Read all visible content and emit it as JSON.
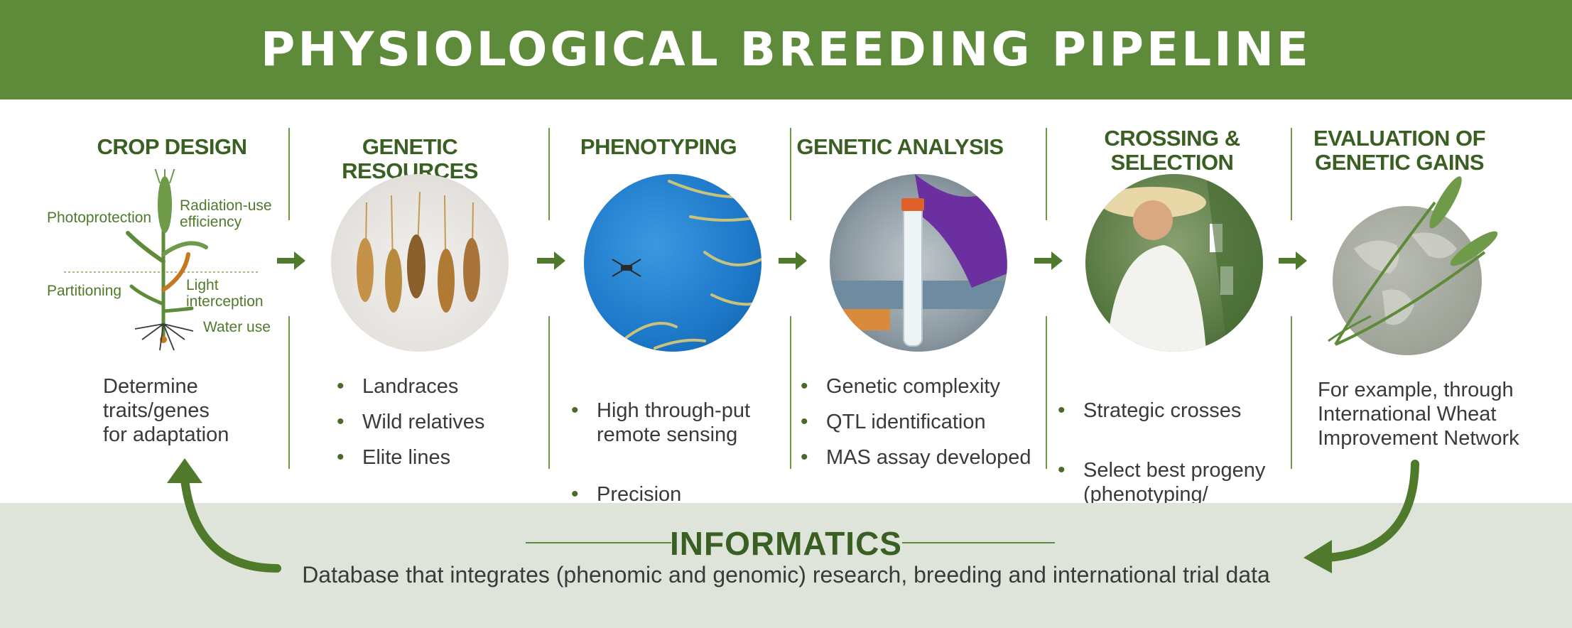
{
  "header": {
    "title": "PHYSIOLOGICAL BREEDING PIPELINE"
  },
  "colors": {
    "brand_green": "#5d8b3a",
    "dark_green": "#3a5f22",
    "band_gray": "#dfe4db"
  },
  "stages": [
    {
      "title": "CROP DESIGN",
      "labels": {
        "photoprotection": "Photoprotection",
        "radiation": "Radiation-use\nefficiency",
        "partitioning": "Partitioning",
        "light": "Light\ninterception",
        "water": "Water use"
      },
      "description": "Determine\ntraits/genes\nfor adaptation"
    },
    {
      "title": "GENETIC RESOURCES",
      "image": "wheat-spikes-photo",
      "bullets": [
        "Landraces",
        "Wild relatives",
        "Elite lines"
      ]
    },
    {
      "title": "PHENOTYPING",
      "image": "drone-over-wheat-photo",
      "bullets": [
        "High through-put\nremote sensing",
        "Precision\nphenotyping"
      ]
    },
    {
      "title": "GENETIC ANALYSIS",
      "image": "lab-test-tube-photo",
      "bullets": [
        "Genetic complexity",
        "QTL identification",
        "MAS assay developed"
      ]
    },
    {
      "title": "CROSSING &\nSELECTION",
      "image": "breeder-in-field-photo",
      "bullets": [
        "Strategic crosses",
        "Select best progeny\n(phenotyping/\nmolecular tools)"
      ]
    },
    {
      "title": "EVALUATION OF\nGENETIC GAINS",
      "image": "globe-with-wheat-icon",
      "description": "For example, through\nInternational Wheat\nImprovement Network"
    }
  ],
  "informatics": {
    "title": "INFORMATICS",
    "description": "Database that integrates (phenomic and genomic) research, breeding and international trial data"
  }
}
